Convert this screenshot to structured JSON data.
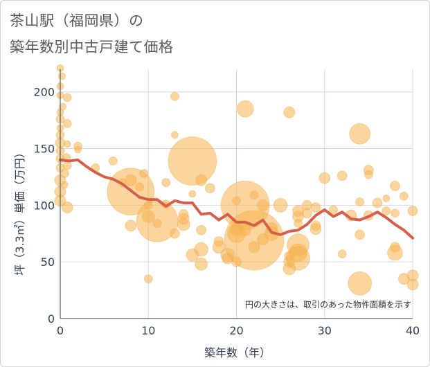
{
  "chart_data": {
    "type": "scatter",
    "title_line1": "茶山駅（福岡県）の",
    "title_line2": "築年数別中古戸建て価格",
    "xlabel": "築年数（年）",
    "ylabel": "坪（3.3㎡）単価（万円）",
    "note": "円の大きさは、取引のあった物件面積を示す",
    "xlim": [
      0,
      40
    ],
    "ylim": [
      0,
      220
    ],
    "xticks": [
      "0",
      "10",
      "20",
      "30",
      "40"
    ],
    "xtick_values": [
      0,
      10,
      20,
      30,
      40
    ],
    "yticks": [
      "0",
      "50",
      "100",
      "150",
      "200"
    ],
    "ytick_values": [
      0,
      50,
      100,
      150,
      200
    ],
    "grid": true,
    "colors": {
      "bubble": "#f5b24e",
      "line": "#d4604b",
      "grid": "#cfd9e3"
    },
    "line": {
      "x": [
        0,
        1,
        2,
        3,
        4,
        5,
        6,
        7,
        8,
        9,
        10,
        11,
        12,
        13,
        14,
        15,
        16,
        17,
        18,
        19,
        20,
        21,
        22,
        23,
        24,
        25,
        26,
        27,
        28,
        29,
        30,
        31,
        32,
        33,
        34,
        35,
        36,
        37,
        38,
        39,
        40
      ],
      "y": [
        140,
        139,
        140,
        134,
        129,
        125,
        123,
        119,
        113,
        107,
        105,
        105,
        99,
        104,
        102,
        102,
        92,
        93,
        87,
        92,
        85,
        85,
        82,
        87,
        76,
        74,
        77,
        78,
        83,
        91,
        96,
        90,
        94,
        88,
        87,
        90,
        94,
        89,
        83,
        78,
        71
      ]
    },
    "bubbles": [
      [
        0,
        221,
        5
      ],
      [
        0.2,
        214,
        5
      ],
      [
        0,
        205,
        5
      ],
      [
        0,
        197,
        5
      ],
      [
        0.3,
        187,
        5
      ],
      [
        0,
        182,
        5
      ],
      [
        0,
        176,
        6
      ],
      [
        0,
        168,
        5
      ],
      [
        0,
        162,
        6
      ],
      [
        0,
        155,
        7
      ],
      [
        0,
        148,
        6
      ],
      [
        0,
        141,
        6
      ],
      [
        0,
        133,
        6
      ],
      [
        0,
        122,
        8
      ],
      [
        0,
        112,
        8
      ],
      [
        0,
        104,
        8
      ],
      [
        0.5,
        128,
        6
      ],
      [
        0.5,
        118,
        5
      ],
      [
        0.8,
        195,
        6
      ],
      [
        0.8,
        172,
        6
      ],
      [
        0.8,
        154,
        5
      ],
      [
        0.7,
        142,
        6
      ],
      [
        0.8,
        135,
        6
      ],
      [
        0.8,
        98,
        8
      ],
      [
        2,
        152,
        6
      ],
      [
        2,
        149,
        5
      ],
      [
        4,
        133,
        6
      ],
      [
        6,
        139,
        6
      ],
      [
        7,
        120,
        6
      ],
      [
        8,
        112,
        34
      ],
      [
        8,
        82,
        8
      ],
      [
        8,
        122,
        8
      ],
      [
        9,
        116,
        6
      ],
      [
        9.5,
        128,
        6
      ],
      [
        10,
        35,
        6
      ],
      [
        10,
        90,
        9
      ],
      [
        10,
        100,
        6
      ],
      [
        11,
        86,
        30
      ],
      [
        11,
        84,
        6
      ],
      [
        12,
        120,
        6
      ],
      [
        12,
        101,
        6
      ],
      [
        13,
        196,
        6
      ],
      [
        13,
        162,
        5
      ],
      [
        13,
        75,
        7
      ],
      [
        14,
        92,
        7
      ],
      [
        14,
        83,
        9
      ],
      [
        14,
        88,
        8
      ],
      [
        15,
        139,
        35
      ],
      [
        15,
        110,
        5
      ],
      [
        15,
        56,
        9
      ],
      [
        16,
        122,
        8
      ],
      [
        16,
        78,
        7
      ],
      [
        16,
        48,
        9
      ],
      [
        16,
        61,
        10
      ],
      [
        17,
        115,
        7
      ],
      [
        18,
        68,
        7
      ],
      [
        18,
        63,
        9
      ],
      [
        19,
        56,
        10
      ],
      [
        19,
        53,
        8
      ],
      [
        20,
        104,
        6
      ],
      [
        20,
        50,
        7
      ],
      [
        20,
        79,
        9
      ],
      [
        20,
        75,
        13
      ],
      [
        21,
        100,
        35
      ],
      [
        21,
        185,
        12
      ],
      [
        21,
        78,
        8
      ],
      [
        22,
        69,
        43
      ],
      [
        22,
        109,
        6
      ],
      [
        22,
        63,
        8
      ],
      [
        23,
        100,
        8
      ],
      [
        23,
        70,
        8
      ],
      [
        24,
        80,
        8
      ],
      [
        24,
        75,
        10
      ],
      [
        25,
        100,
        10
      ],
      [
        26,
        182,
        8
      ],
      [
        26,
        50,
        8
      ],
      [
        26,
        44,
        9
      ],
      [
        26,
        55,
        7
      ],
      [
        27,
        65,
        16
      ],
      [
        27,
        58,
        13
      ],
      [
        27,
        95,
        8
      ],
      [
        27,
        90,
        8
      ],
      [
        27,
        84,
        6
      ],
      [
        27,
        53,
        17
      ],
      [
        28,
        100,
        7
      ],
      [
        28,
        93,
        7
      ],
      [
        29,
        98,
        7
      ],
      [
        29,
        82,
        7
      ],
      [
        29,
        79,
        8
      ],
      [
        30,
        124,
        8
      ],
      [
        31,
        96,
        6
      ],
      [
        32,
        126,
        7
      ],
      [
        32,
        57,
        6
      ],
      [
        33,
        91,
        8
      ],
      [
        34,
        163,
        15
      ],
      [
        34,
        103,
        6
      ],
      [
        34,
        74,
        7
      ],
      [
        34,
        31,
        17
      ],
      [
        35,
        131,
        7
      ],
      [
        35,
        127,
        6
      ],
      [
        35,
        91,
        7
      ],
      [
        36,
        102,
        7
      ],
      [
        37,
        106,
        5
      ],
      [
        37,
        95,
        6
      ],
      [
        38,
        117,
        7
      ],
      [
        38,
        93,
        6
      ],
      [
        38,
        63,
        7
      ],
      [
        38,
        58,
        11
      ],
      [
        39,
        108,
        6
      ],
      [
        39,
        35,
        8
      ],
      [
        40,
        95,
        7
      ],
      [
        40,
        38,
        8
      ],
      [
        40,
        30,
        8
      ]
    ]
  }
}
